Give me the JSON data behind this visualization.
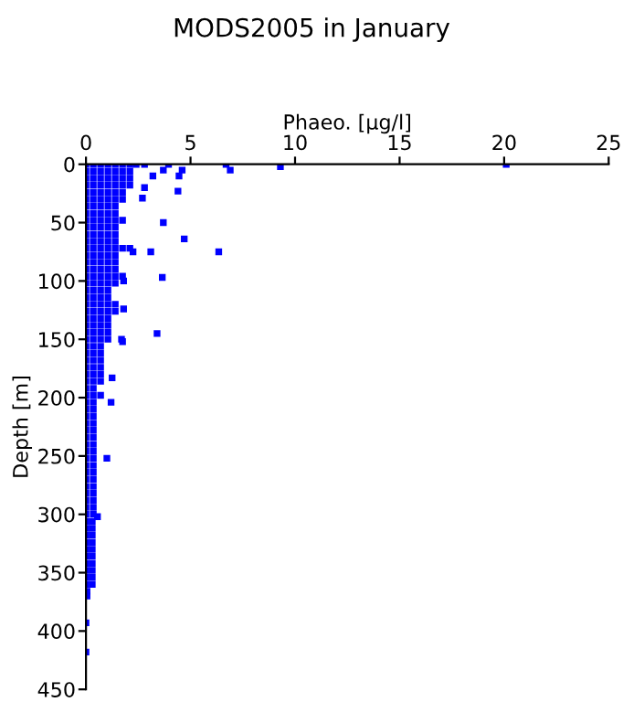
{
  "chart_data": {
    "type": "scatter",
    "title": "MODS2005 in January",
    "xlabel": "Phaeo. [µg/l]",
    "ylabel": "Depth [m]",
    "xlim": [
      0,
      25
    ],
    "xticks": [
      0,
      5,
      10,
      15,
      20,
      25
    ],
    "ylim": [
      450,
      0
    ],
    "yticks": [
      0,
      50,
      100,
      150,
      200,
      250,
      300,
      350,
      400,
      450
    ],
    "grid": false,
    "marker": "square",
    "series": [
      {
        "color": "#0000ff",
        "x": [
          0,
          0.35,
          0.7,
          1.05,
          1.4,
          1.75,
          2.1,
          2.4,
          0,
          0.35,
          0.7,
          1.05,
          1.4,
          1.75,
          2.1,
          0,
          0.35,
          0.7,
          1.05,
          1.4,
          1.75,
          2.1,
          0,
          0.35,
          0.7,
          1.05,
          1.4,
          1.75,
          2.1,
          0,
          0.35,
          0.7,
          1.05,
          1.4,
          1.75,
          0,
          0.35,
          0.7,
          1.05,
          1.4,
          1.75,
          0,
          0.35,
          0.7,
          1.05,
          1.4,
          0,
          0.35,
          0.7,
          1.05,
          1.4,
          0,
          0.35,
          0.7,
          1.05,
          1.4,
          1.75,
          0,
          0.35,
          0.7,
          1.05,
          1.4,
          0,
          0.35,
          0.7,
          1.05,
          1.4,
          0,
          0.35,
          0.7,
          1.05,
          1.4,
          0,
          0.35,
          0.7,
          1.05,
          1.4,
          1.75,
          2.1,
          0,
          0.35,
          0.7,
          1.05,
          1.4,
          0,
          0.35,
          0.7,
          1.05,
          1.4,
          0,
          0.35,
          0.7,
          1.05,
          1.4,
          0,
          0.35,
          0.7,
          1.05,
          1.4,
          1.75,
          0,
          0.35,
          0.7,
          1.05,
          1.4,
          0,
          0.35,
          0.7,
          1.05,
          0,
          0.35,
          0.7,
          1.05,
          0,
          0.35,
          0.7,
          1.05,
          1.4,
          0,
          0.35,
          0.7,
          1.05,
          1.4,
          0,
          0.35,
          0.7,
          1.05,
          0,
          0.35,
          0.7,
          1.05,
          0,
          0.35,
          0.7,
          1.05,
          0,
          0.35,
          0.7,
          1.05,
          0,
          0.35,
          0.7,
          0,
          0.35,
          0.7,
          0,
          0.35,
          0.7,
          0,
          0.35,
          0.7,
          0,
          0.35,
          0.7,
          0,
          0.35,
          0.7,
          0,
          0.35,
          0,
          0.35,
          0.7,
          0,
          0.35,
          0,
          0.35,
          0,
          0.35,
          0,
          0.35,
          0,
          0.35,
          0,
          0.35,
          0,
          0.35,
          0,
          0.35,
          0,
          0.35,
          0,
          0.35,
          0,
          0.35,
          0,
          0.35,
          0,
          0.35,
          0,
          0.35,
          0,
          0.35,
          0,
          0.35,
          0,
          0.35,
          0,
          0.3,
          0,
          0.3,
          0,
          0.3,
          0,
          0.3,
          0,
          0.3,
          0,
          0.3,
          0,
          0.3,
          0,
          0.3,
          0,
          0.3,
          0,
          0.3,
          20.1,
          9.3,
          6.7,
          6.9,
          3.95,
          2.8,
          4.6,
          3.7,
          4.45,
          3.2,
          4.4,
          2.8,
          2.7,
          3.7,
          4.7,
          6.35,
          3.1,
          2.25,
          3.65,
          1.8,
          3.4,
          1.7,
          1.75,
          1.8,
          1.25,
          1.2,
          1.0,
          0.55,
          0.05,
          0.05,
          0,
          0
        ],
        "values": [
          0,
          0,
          0,
          0,
          0,
          0,
          0,
          0,
          6,
          6,
          6,
          6,
          6,
          6,
          6,
          12,
          12,
          12,
          12,
          12,
          12,
          12,
          18,
          18,
          18,
          18,
          18,
          18,
          18,
          24,
          24,
          24,
          24,
          24,
          24,
          30,
          30,
          30,
          30,
          30,
          30,
          36,
          36,
          36,
          36,
          36,
          42,
          42,
          42,
          42,
          42,
          48,
          48,
          48,
          48,
          48,
          48,
          54,
          54,
          54,
          54,
          54,
          60,
          60,
          60,
          60,
          60,
          66,
          66,
          66,
          66,
          66,
          72,
          72,
          72,
          72,
          72,
          72,
          72,
          78,
          78,
          78,
          78,
          78,
          84,
          84,
          84,
          84,
          84,
          90,
          90,
          90,
          90,
          90,
          96,
          96,
          96,
          96,
          96,
          96,
          102,
          102,
          102,
          102,
          102,
          108,
          108,
          108,
          108,
          114,
          114,
          114,
          114,
          120,
          120,
          120,
          120,
          120,
          126,
          126,
          126,
          126,
          126,
          132,
          132,
          132,
          132,
          138,
          138,
          138,
          138,
          144,
          144,
          144,
          144,
          150,
          150,
          150,
          150,
          156,
          156,
          156,
          162,
          162,
          162,
          168,
          168,
          168,
          174,
          174,
          174,
          180,
          180,
          180,
          186,
          186,
          186,
          192,
          192,
          198,
          198,
          198,
          204,
          204,
          210,
          210,
          216,
          216,
          222,
          222,
          228,
          228,
          234,
          234,
          240,
          240,
          246,
          246,
          252,
          252,
          258,
          258,
          264,
          264,
          270,
          270,
          276,
          276,
          282,
          282,
          288,
          288,
          294,
          294,
          300,
          300,
          306,
          306,
          312,
          312,
          318,
          318,
          324,
          324,
          330,
          330,
          336,
          336,
          342,
          342,
          348,
          348,
          354,
          354,
          360,
          360,
          0,
          2,
          0,
          5,
          0,
          0,
          5,
          5,
          10,
          10,
          23,
          20,
          29,
          50,
          64,
          75,
          75,
          75,
          97,
          100,
          145,
          150,
          152,
          124,
          183,
          204,
          252,
          302,
          366,
          370,
          393,
          418
        ]
      }
    ]
  }
}
